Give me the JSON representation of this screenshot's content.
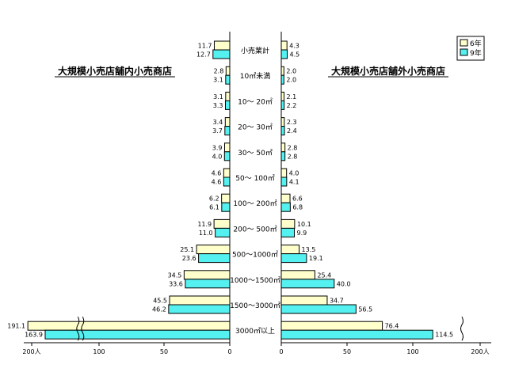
{
  "chart_data": {
    "type": "bar",
    "orientation": "horizontal-butterfly",
    "categories": [
      "小売業計",
      "10㎡未満",
      "10～ 20㎡",
      "20～ 30㎡",
      "30～ 50㎡",
      "50～ 100㎡",
      "100～ 200㎡",
      "200～ 500㎡",
      "500～1000㎡",
      "1000～1500㎡",
      "1500～3000㎡",
      "3000㎡以上"
    ],
    "series_labels": [
      "6年",
      "9年"
    ],
    "panels": [
      {
        "title": "大規模小売店舗内小売商店",
        "side": "left",
        "series": [
          {
            "name": "6年",
            "values": [
              11.7,
              2.8,
              3.1,
              3.4,
              3.9,
              4.6,
              6.2,
              11.9,
              25.1,
              34.5,
              45.5,
              191.1
            ]
          },
          {
            "name": "9年",
            "values": [
              12.7,
              3.1,
              3.3,
              3.7,
              4.0,
              4.6,
              6.1,
              11.0,
              23.6,
              33.6,
              46.2,
              163.9
            ]
          }
        ],
        "value_labels": {
          "6年": [
            "11.7",
            "2.8",
            "3.1",
            "3.4",
            "3.9",
            "4.6",
            "6.2",
            "11.9",
            "25.1",
            "34.5",
            "45.5",
            "191.1"
          ],
          "9年": [
            "12.7",
            "3.1",
            "3.3",
            "3.7",
            "4.0",
            "4.6",
            "6.1",
            "11.0",
            "23.6",
            "33.6",
            "46.2",
            "163.9"
          ]
        },
        "ticks": [
          "200人",
          "100",
          "50",
          "0"
        ]
      },
      {
        "title": "大規模小売店舗外小売商店",
        "side": "right",
        "series": [
          {
            "name": "6年",
            "values": [
              4.3,
              2.0,
              2.1,
              2.3,
              2.8,
              4.0,
              6.6,
              10.1,
              13.5,
              25.4,
              34.7,
              76.4
            ]
          },
          {
            "name": "9年",
            "values": [
              4.5,
              2.0,
              2.2,
              2.4,
              2.8,
              4.1,
              6.8,
              9.9,
              19.1,
              40.0,
              56.5,
              114.5
            ]
          }
        ],
        "value_labels": {
          "6年": [
            "4.3",
            "2.0",
            "2.1",
            "2.3",
            "2.8",
            "4.0",
            "6.6",
            "10.1",
            "13.5",
            "25.4",
            "34.7",
            "76.4"
          ],
          "9年": [
            "4.5",
            "2.0",
            "2.2",
            "2.4",
            "2.8",
            "4.1",
            "6.8",
            "9.9",
            "19.1",
            "40.0",
            "56.5",
            "114.5"
          ]
        },
        "ticks": [
          "0",
          "50",
          "100",
          "200人"
        ]
      }
    ],
    "xlim": [
      0,
      200
    ],
    "axis_break": true,
    "legend_position": "top-right",
    "colors": {
      "6年": "#ffffcc",
      "9年": "#55f0f0",
      "outline": "#000000"
    }
  }
}
